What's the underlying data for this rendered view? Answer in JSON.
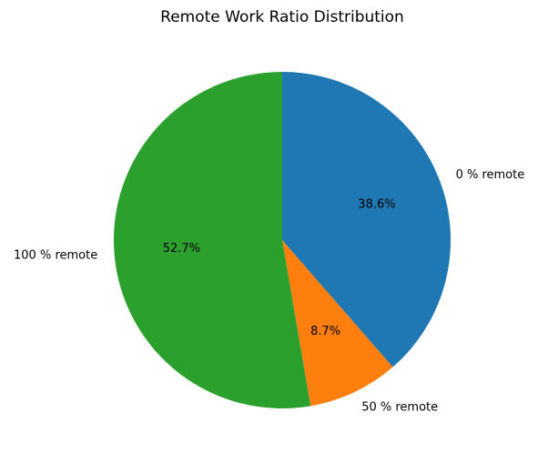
{
  "chart_data": {
    "type": "pie",
    "title": "Remote Work Ratio Distribution",
    "labels": [
      "0 % remote",
      "50 % remote",
      "100 % remote"
    ],
    "values": [
      38.6,
      8.7,
      52.7
    ],
    "value_labels": [
      "38.6%",
      "8.7%",
      "52.7%"
    ],
    "colors": [
      "#1f77b4",
      "#ff7f0e",
      "#2ca02c"
    ],
    "start_angle_deg": 90,
    "direction": "clockwise",
    "legend": "none"
  }
}
